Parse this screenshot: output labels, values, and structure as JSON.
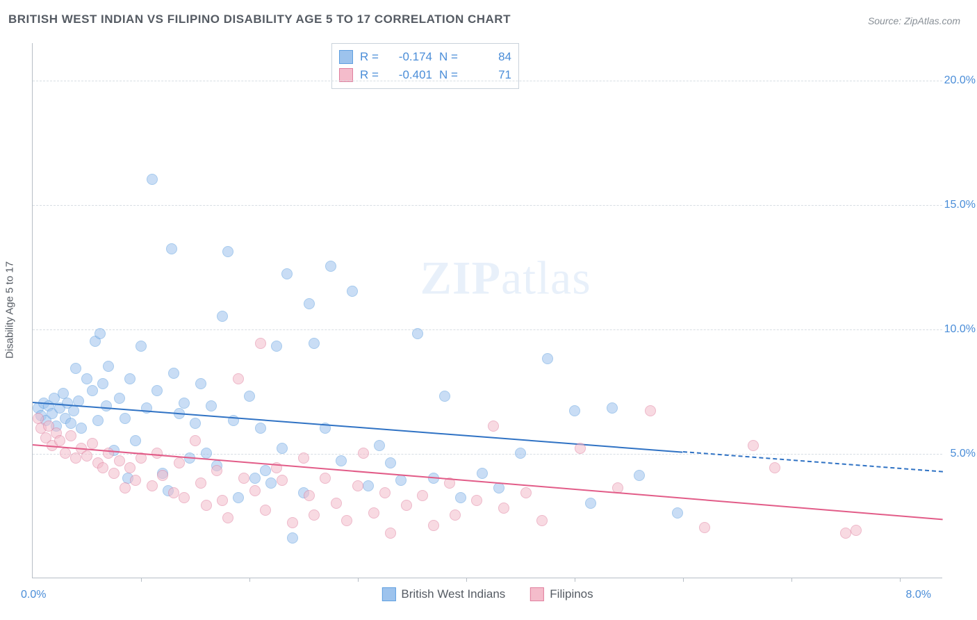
{
  "title": "BRITISH WEST INDIAN VS FILIPINO DISABILITY AGE 5 TO 17 CORRELATION CHART",
  "source": "Source: ZipAtlas.com",
  "watermark": {
    "bold": "ZIP",
    "rest": "atlas"
  },
  "y_axis_title": "Disability Age 5 to 17",
  "chart": {
    "type": "scatter",
    "background_color": "#ffffff",
    "grid_color": "#d7dde3",
    "axis_color": "#b7bec6",
    "xlim": [
      0,
      8.4
    ],
    "ylim": [
      0,
      21.5
    ],
    "x_ticks": [
      1,
      2,
      3,
      4,
      5,
      6,
      7,
      8
    ],
    "x_tick_labels": {
      "left": "0.0%",
      "right": "8.0%"
    },
    "y_gridlines": [
      5,
      10,
      15,
      20
    ],
    "y_tick_labels": [
      "5.0%",
      "10.0%",
      "15.0%",
      "20.0%"
    ],
    "marker_size": 16,
    "marker_opacity": 0.55,
    "line_width": 2.5
  },
  "series": [
    {
      "name": "British West Indians",
      "fill": "#9dc3ed",
      "stroke": "#5f9fe0",
      "line_color": "#2f72c4",
      "R": "-0.174",
      "N": "84",
      "regression": {
        "x1": 0,
        "y1": 7.1,
        "x2": 6.0,
        "y2": 5.1,
        "x2_dash": 8.4,
        "y2_dash": 4.3
      },
      "points": [
        [
          0.05,
          6.8
        ],
        [
          0.08,
          6.5
        ],
        [
          0.1,
          7.0
        ],
        [
          0.12,
          6.3
        ],
        [
          0.15,
          6.9
        ],
        [
          0.18,
          6.6
        ],
        [
          0.2,
          7.2
        ],
        [
          0.22,
          6.1
        ],
        [
          0.25,
          6.8
        ],
        [
          0.28,
          7.4
        ],
        [
          0.3,
          6.4
        ],
        [
          0.32,
          7.0
        ],
        [
          0.35,
          6.2
        ],
        [
          0.38,
          6.7
        ],
        [
          0.4,
          8.4
        ],
        [
          0.42,
          7.1
        ],
        [
          0.45,
          6.0
        ],
        [
          0.5,
          8.0
        ],
        [
          0.55,
          7.5
        ],
        [
          0.58,
          9.5
        ],
        [
          0.6,
          6.3
        ],
        [
          0.62,
          9.8
        ],
        [
          0.65,
          7.8
        ],
        [
          0.68,
          6.9
        ],
        [
          0.7,
          8.5
        ],
        [
          0.75,
          5.1
        ],
        [
          0.8,
          7.2
        ],
        [
          0.85,
          6.4
        ],
        [
          0.88,
          4.0
        ],
        [
          0.9,
          8.0
        ],
        [
          0.95,
          5.5
        ],
        [
          1.0,
          9.3
        ],
        [
          1.05,
          6.8
        ],
        [
          1.1,
          16.0
        ],
        [
          1.15,
          7.5
        ],
        [
          1.2,
          4.2
        ],
        [
          1.25,
          3.5
        ],
        [
          1.28,
          13.2
        ],
        [
          1.3,
          8.2
        ],
        [
          1.35,
          6.6
        ],
        [
          1.4,
          7.0
        ],
        [
          1.45,
          4.8
        ],
        [
          1.5,
          6.2
        ],
        [
          1.55,
          7.8
        ],
        [
          1.6,
          5.0
        ],
        [
          1.65,
          6.9
        ],
        [
          1.7,
          4.5
        ],
        [
          1.75,
          10.5
        ],
        [
          1.8,
          13.1
        ],
        [
          1.85,
          6.3
        ],
        [
          1.9,
          3.2
        ],
        [
          2.0,
          7.3
        ],
        [
          2.05,
          4.0
        ],
        [
          2.1,
          6.0
        ],
        [
          2.15,
          4.3
        ],
        [
          2.2,
          3.8
        ],
        [
          2.25,
          9.3
        ],
        [
          2.3,
          5.2
        ],
        [
          2.35,
          12.2
        ],
        [
          2.4,
          1.6
        ],
        [
          2.5,
          3.4
        ],
        [
          2.55,
          11.0
        ],
        [
          2.6,
          9.4
        ],
        [
          2.7,
          6.0
        ],
        [
          2.75,
          12.5
        ],
        [
          2.85,
          4.7
        ],
        [
          2.95,
          11.5
        ],
        [
          3.1,
          3.7
        ],
        [
          3.2,
          5.3
        ],
        [
          3.3,
          4.6
        ],
        [
          3.4,
          3.9
        ],
        [
          3.55,
          9.8
        ],
        [
          3.7,
          4.0
        ],
        [
          3.8,
          7.3
        ],
        [
          3.95,
          3.2
        ],
        [
          4.15,
          4.2
        ],
        [
          4.3,
          3.6
        ],
        [
          4.5,
          5.0
        ],
        [
          4.75,
          8.8
        ],
        [
          5.0,
          6.7
        ],
        [
          5.15,
          3.0
        ],
        [
          5.35,
          6.8
        ],
        [
          5.6,
          4.1
        ],
        [
          5.95,
          2.6
        ]
      ]
    },
    {
      "name": "Filipinos",
      "fill": "#f4bccb",
      "stroke": "#e07f9e",
      "line_color": "#e25c88",
      "R": "-0.401",
      "N": "71",
      "regression": {
        "x1": 0,
        "y1": 5.4,
        "x2": 8.4,
        "y2": 2.4,
        "x2_dash": 8.4,
        "y2_dash": 2.4
      },
      "points": [
        [
          0.05,
          6.4
        ],
        [
          0.08,
          6.0
        ],
        [
          0.12,
          5.6
        ],
        [
          0.15,
          6.1
        ],
        [
          0.18,
          5.3
        ],
        [
          0.22,
          5.8
        ],
        [
          0.25,
          5.5
        ],
        [
          0.3,
          5.0
        ],
        [
          0.35,
          5.7
        ],
        [
          0.4,
          4.8
        ],
        [
          0.45,
          5.2
        ],
        [
          0.5,
          4.9
        ],
        [
          0.55,
          5.4
        ],
        [
          0.6,
          4.6
        ],
        [
          0.65,
          4.4
        ],
        [
          0.7,
          5.0
        ],
        [
          0.75,
          4.2
        ],
        [
          0.8,
          4.7
        ],
        [
          0.85,
          3.6
        ],
        [
          0.9,
          4.4
        ],
        [
          0.95,
          3.9
        ],
        [
          1.0,
          4.8
        ],
        [
          1.1,
          3.7
        ],
        [
          1.15,
          5.0
        ],
        [
          1.2,
          4.1
        ],
        [
          1.3,
          3.4
        ],
        [
          1.35,
          4.6
        ],
        [
          1.4,
          3.2
        ],
        [
          1.5,
          5.5
        ],
        [
          1.55,
          3.8
        ],
        [
          1.6,
          2.9
        ],
        [
          1.7,
          4.3
        ],
        [
          1.75,
          3.1
        ],
        [
          1.8,
          2.4
        ],
        [
          1.9,
          8.0
        ],
        [
          1.95,
          4.0
        ],
        [
          2.05,
          3.5
        ],
        [
          2.1,
          9.4
        ],
        [
          2.15,
          2.7
        ],
        [
          2.25,
          4.4
        ],
        [
          2.3,
          3.9
        ],
        [
          2.4,
          2.2
        ],
        [
          2.5,
          4.8
        ],
        [
          2.55,
          3.3
        ],
        [
          2.6,
          2.5
        ],
        [
          2.7,
          4.0
        ],
        [
          2.8,
          3.0
        ],
        [
          2.9,
          2.3
        ],
        [
          3.0,
          3.7
        ],
        [
          3.05,
          5.0
        ],
        [
          3.15,
          2.6
        ],
        [
          3.25,
          3.4
        ],
        [
          3.3,
          1.8
        ],
        [
          3.45,
          2.9
        ],
        [
          3.6,
          3.3
        ],
        [
          3.7,
          2.1
        ],
        [
          3.85,
          3.8
        ],
        [
          3.9,
          2.5
        ],
        [
          4.1,
          3.1
        ],
        [
          4.25,
          6.1
        ],
        [
          4.35,
          2.8
        ],
        [
          4.55,
          3.4
        ],
        [
          4.7,
          2.3
        ],
        [
          5.05,
          5.2
        ],
        [
          5.4,
          3.6
        ],
        [
          5.7,
          6.7
        ],
        [
          6.2,
          2.0
        ],
        [
          6.65,
          5.3
        ],
        [
          6.85,
          4.4
        ],
        [
          7.5,
          1.8
        ],
        [
          7.6,
          1.9
        ]
      ]
    }
  ],
  "legend": {
    "items": [
      {
        "label": "British West Indians",
        "fill": "#9dc3ed",
        "stroke": "#5f9fe0"
      },
      {
        "label": "Filipinos",
        "fill": "#f4bccb",
        "stroke": "#e07f9e"
      }
    ]
  }
}
